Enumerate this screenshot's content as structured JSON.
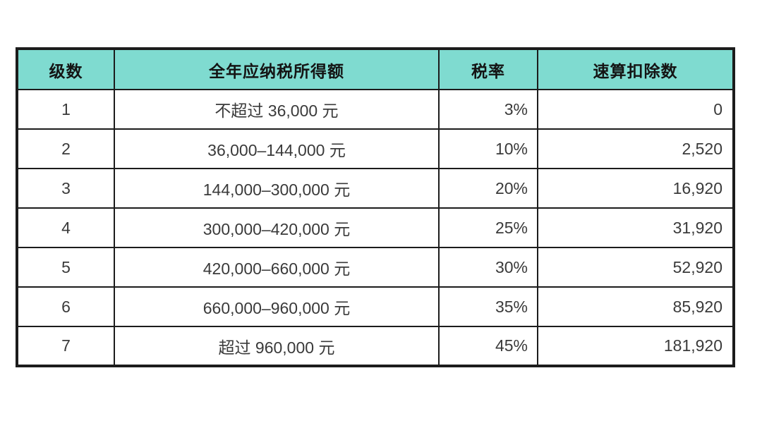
{
  "page": {
    "background_color": "#ffffff"
  },
  "table": {
    "header_background_color": "#7fdbd0",
    "border_color": "#1c1c1c",
    "text_color": "#3a3a3a",
    "headers": {
      "level": "级数",
      "income": "全年应纳税所得额",
      "rate": "税率",
      "deduction": "速算扣除数"
    },
    "rows": [
      {
        "level": "1",
        "income": "不超过 36,000 元",
        "rate": "3%",
        "deduction": "0"
      },
      {
        "level": "2",
        "income": "36,000–144,000 元",
        "rate": "10%",
        "deduction": "2,520"
      },
      {
        "level": "3",
        "income": "144,000–300,000 元",
        "rate": "20%",
        "deduction": "16,920"
      },
      {
        "level": "4",
        "income": "300,000–420,000 元",
        "rate": "25%",
        "deduction": "31,920"
      },
      {
        "level": "5",
        "income": "420,000–660,000 元",
        "rate": "30%",
        "deduction": "52,920"
      },
      {
        "level": "6",
        "income": "660,000–960,000 元",
        "rate": "35%",
        "deduction": "85,920"
      },
      {
        "level": "7",
        "income": "超过 960,000 元",
        "rate": "45%",
        "deduction": "181,920"
      }
    ]
  }
}
